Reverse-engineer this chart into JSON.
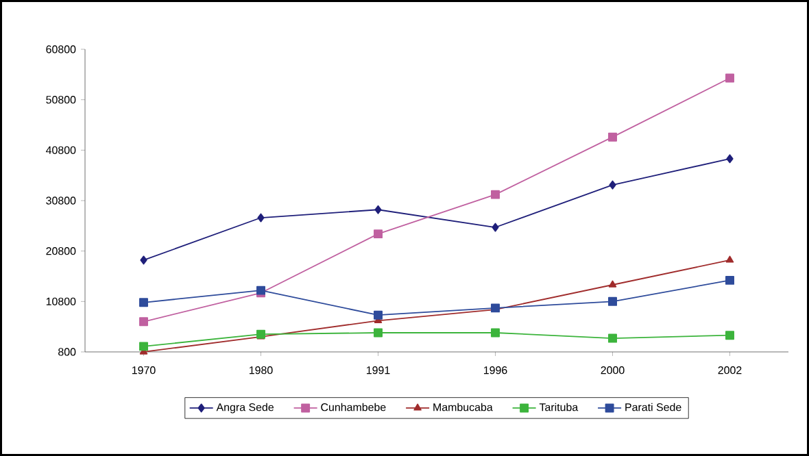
{
  "chart_data": {
    "type": "line",
    "categories": [
      "1970",
      "1980",
      "1991",
      "1996",
      "2000",
      "2002"
    ],
    "series": [
      {
        "name": "Angra Sede",
        "color": "#1f1f7a",
        "marker": "diamond",
        "values": [
          19000,
          27400,
          29000,
          25500,
          33900,
          39100
        ]
      },
      {
        "name": "Cunhambebe",
        "color": "#c060a0",
        "marker": "square",
        "values": [
          6800,
          12500,
          24200,
          32000,
          43400,
          55100
        ]
      },
      {
        "name": "Mambucaba",
        "color": "#a02c2c",
        "marker": "triangle",
        "values": [
          800,
          3800,
          7000,
          9200,
          14100,
          19000
        ]
      },
      {
        "name": "Tarituba",
        "color": "#3cb43c",
        "marker": "square",
        "values": [
          1900,
          4300,
          4600,
          4600,
          3500,
          4100
        ]
      },
      {
        "name": "Parati Sede",
        "color": "#2e4b9b",
        "marker": "square",
        "values": [
          10600,
          13000,
          8100,
          9500,
          10800,
          15000
        ]
      }
    ],
    "ylim": [
      800,
      60800
    ],
    "yticks": [
      800,
      10800,
      20800,
      30800,
      40800,
      50800,
      60800
    ],
    "grid": false,
    "legend": "bottom",
    "line_style": "solid"
  }
}
